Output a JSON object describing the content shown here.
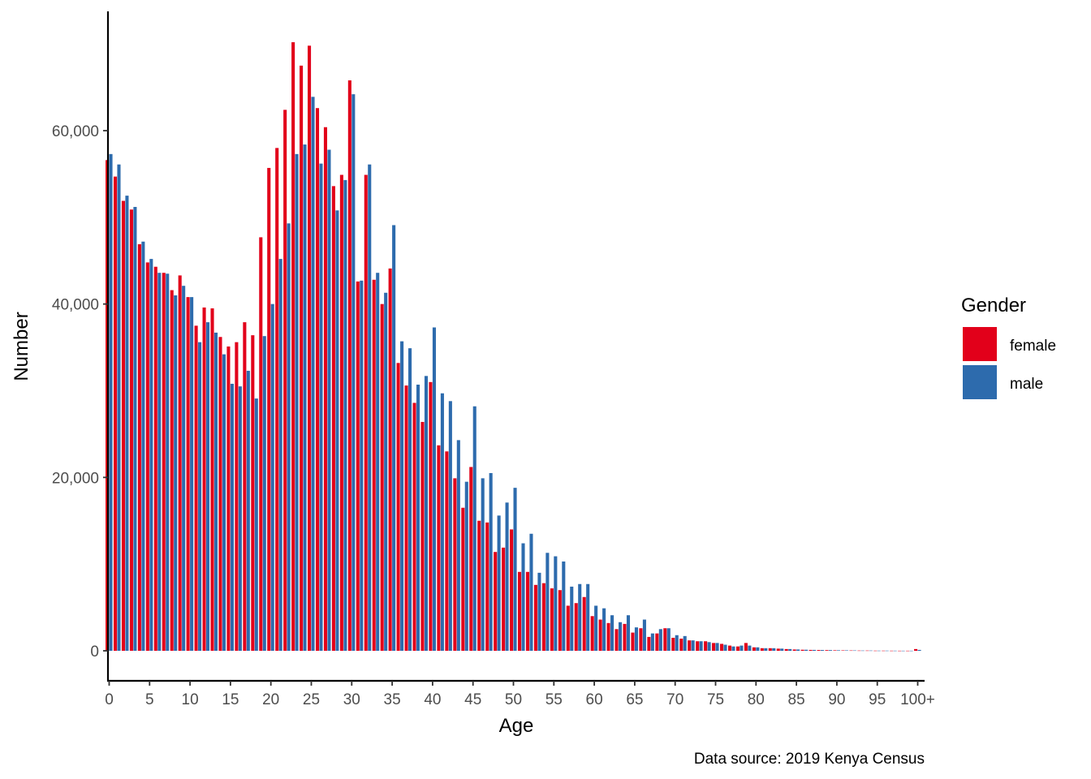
{
  "chart_data": {
    "type": "bar",
    "title": "",
    "xlabel": "Age",
    "ylabel": "Number",
    "caption": "Data source: 2019 Kenya Census",
    "ylim": [
      -3500,
      70500
    ],
    "yticks": [
      0,
      20000,
      40000,
      60000
    ],
    "ytick_labels": [
      "0",
      "20,000",
      "40,000",
      "60,000"
    ],
    "xtick_labels": [
      "0",
      "5",
      "10",
      "15",
      "20",
      "25",
      "30",
      "35",
      "40",
      "45",
      "50",
      "55",
      "60",
      "65",
      "70",
      "75",
      "80",
      "85",
      "90",
      "95",
      "100+"
    ],
    "grid": false,
    "legend": {
      "title": "Gender",
      "position": "right"
    },
    "categories": [
      "0",
      "1",
      "2",
      "3",
      "4",
      "5",
      "6",
      "7",
      "8",
      "9",
      "10",
      "11",
      "12",
      "13",
      "14",
      "15",
      "16",
      "17",
      "18",
      "19",
      "20",
      "21",
      "22",
      "23",
      "24",
      "25",
      "26",
      "27",
      "28",
      "29",
      "30",
      "31",
      "32",
      "33",
      "34",
      "35",
      "36",
      "37",
      "38",
      "39",
      "40",
      "41",
      "42",
      "43",
      "44",
      "45",
      "46",
      "47",
      "48",
      "49",
      "50",
      "51",
      "52",
      "53",
      "54",
      "55",
      "56",
      "57",
      "58",
      "59",
      "60",
      "61",
      "62",
      "63",
      "64",
      "65",
      "66",
      "67",
      "68",
      "69",
      "70",
      "71",
      "72",
      "73",
      "74",
      "75",
      "76",
      "77",
      "78",
      "79",
      "80",
      "81",
      "82",
      "83",
      "84",
      "85",
      "86",
      "87",
      "88",
      "89",
      "90",
      "91",
      "92",
      "93",
      "94",
      "95",
      "96",
      "97",
      "98",
      "99",
      "100+"
    ],
    "series": [
      {
        "name": "female",
        "color": "#E2001A",
        "values": [
          56600,
          54700,
          51900,
          50900,
          46900,
          44800,
          44300,
          43600,
          41600,
          43300,
          40800,
          37500,
          39600,
          39500,
          36200,
          35100,
          35600,
          37900,
          36400,
          47700,
          55700,
          58000,
          62400,
          70200,
          67500,
          69800,
          62600,
          60400,
          53600,
          54900,
          65800,
          42600,
          54900,
          42800,
          40000,
          44100,
          33200,
          30600,
          28600,
          26400,
          31000,
          23700,
          23000,
          19900,
          16500,
          21200,
          15000,
          14800,
          11400,
          11900,
          14000,
          9100,
          9100,
          7600,
          7800,
          7200,
          7000,
          5200,
          5500,
          6200,
          4000,
          3600,
          3200,
          2500,
          3100,
          2100,
          2600,
          1600,
          2000,
          2600,
          1500,
          1400,
          1200,
          1100,
          1100,
          900,
          800,
          600,
          500,
          900,
          400,
          300,
          300,
          250,
          200,
          150,
          120,
          100,
          90,
          80,
          60,
          50,
          40,
          30,
          30,
          20,
          20,
          15,
          10,
          10,
          200
        ],
        "labels": [],
        "y_positions": []
      },
      {
        "name": "male",
        "color": "#2D6BAD",
        "values": [
          57300,
          56100,
          52500,
          51200,
          47200,
          45200,
          43600,
          43500,
          41000,
          42100,
          40800,
          35600,
          37900,
          36700,
          34200,
          30800,
          30500,
          32300,
          29100,
          36300,
          40000,
          45200,
          49300,
          57300,
          58400,
          63900,
          56200,
          57800,
          50800,
          54300,
          64200,
          42700,
          56100,
          43600,
          41300,
          49100,
          35700,
          34900,
          30700,
          31700,
          37300,
          29700,
          28800,
          24300,
          19500,
          28200,
          19900,
          20500,
          15600,
          17100,
          18800,
          12400,
          13500,
          9000,
          11300,
          10900,
          10300,
          7400,
          7700,
          7700,
          5200,
          4900,
          4100,
          3300,
          4100,
          2700,
          3600,
          2000,
          2500,
          2600,
          1800,
          1700,
          1200,
          1100,
          1000,
          900,
          700,
          500,
          600,
          600,
          400,
          300,
          300,
          250,
          200,
          150,
          120,
          100,
          90,
          80,
          60,
          50,
          40,
          30,
          30,
          20,
          20,
          15,
          10,
          10,
          100
        ]
      }
    ]
  }
}
